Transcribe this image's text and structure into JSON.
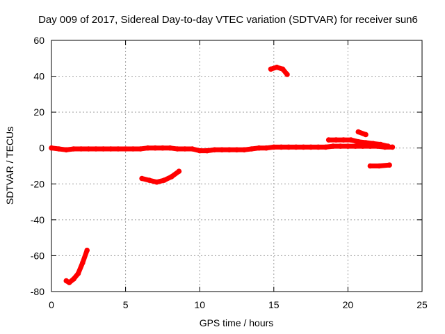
{
  "chart_data": {
    "type": "scatter",
    "title": "Day 009 of 2017, Sidereal Day-to-day VTEC variation (SDTVAR) for receiver sun6",
    "xlabel": "GPS time / hours",
    "ylabel": "SDTVAR / TECUs",
    "xlim": [
      0,
      25
    ],
    "ylim": [
      -80,
      60
    ],
    "xticks": [
      0,
      5,
      10,
      15,
      20,
      25
    ],
    "yticks": [
      -80,
      -60,
      -40,
      -20,
      0,
      20,
      40,
      60
    ],
    "grid": true,
    "legend": "none",
    "series_color": "#ff0000",
    "series": [
      {
        "name": "main",
        "x": [
          0,
          0.5,
          1,
          1.5,
          2,
          2.5,
          3,
          3.5,
          4,
          4.5,
          5,
          5.5,
          6,
          6.5,
          7,
          7.5,
          8,
          8.5,
          9,
          9.5,
          10,
          10.5,
          11,
          11.5,
          12,
          12.5,
          13,
          13.5,
          14,
          14.5,
          15,
          15.5,
          16,
          16.5,
          17,
          17.5,
          18,
          18.5,
          19,
          19.5,
          20,
          20.5,
          21,
          21.5,
          22,
          22.5,
          23
        ],
        "y": [
          0,
          -0.5,
          -1,
          -0.5,
          -0.5,
          -0.5,
          -0.5,
          -0.5,
          -0.5,
          -0.5,
          -0.5,
          -0.5,
          -0.5,
          0,
          0,
          0,
          0,
          -0.5,
          -0.5,
          -0.5,
          -1.5,
          -1.5,
          -1,
          -1,
          -1,
          -1,
          -1,
          -0.5,
          0,
          0,
          0.5,
          0.5,
          0.5,
          0.5,
          0.5,
          0.5,
          0.5,
          0.5,
          1,
          1,
          1,
          1,
          1,
          1,
          1,
          0.5,
          0.5
        ]
      },
      {
        "name": "upper-band",
        "x": [
          18.7,
          19.2,
          19.7,
          20.2,
          20.7,
          21.2,
          21.7,
          22.2,
          22.7
        ],
        "y": [
          4.5,
          4.5,
          4.5,
          4.5,
          3.5,
          3,
          2.5,
          2,
          1
        ]
      },
      {
        "name": "arc-low",
        "x": [
          1,
          1.2,
          1.5,
          1.8,
          2.1,
          2.4
        ],
        "y": [
          -74,
          -75,
          -73,
          -70,
          -64,
          -57
        ]
      },
      {
        "name": "arc-mid",
        "x": [
          6.1,
          6.6,
          7.1,
          7.6,
          8.1,
          8.6
        ],
        "y": [
          -17,
          -18,
          -19,
          -18,
          -16,
          -13
        ]
      },
      {
        "name": "arc-high",
        "x": [
          14.8,
          15.2,
          15.6,
          15.9
        ],
        "y": [
          44,
          45,
          44,
          41
        ]
      },
      {
        "name": "segment-21h",
        "x": [
          20.7,
          21.2
        ],
        "y": [
          9,
          7.5
        ]
      },
      {
        "name": "segment-22h",
        "x": [
          21.5,
          22.1,
          22.8
        ],
        "y": [
          -10,
          -10,
          -9.5
        ]
      }
    ]
  }
}
